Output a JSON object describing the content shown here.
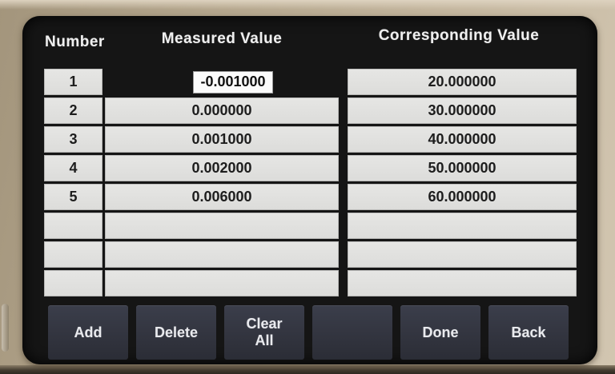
{
  "header": {
    "number": "Number",
    "measured": "Measured Value",
    "corresponding": "Corresponding Value"
  },
  "table": {
    "rows": [
      {
        "number": "1",
        "measured": "-0.001000",
        "corresponding": "20.000000",
        "selected": true
      },
      {
        "number": "2",
        "measured": "0.000000",
        "corresponding": "30.000000",
        "selected": false
      },
      {
        "number": "3",
        "measured": "0.001000",
        "corresponding": "40.000000",
        "selected": false
      },
      {
        "number": "4",
        "measured": "0.002000",
        "corresponding": "50.000000",
        "selected": false
      },
      {
        "number": "5",
        "measured": "0.006000",
        "corresponding": "60.000000",
        "selected": false
      },
      {
        "number": "",
        "measured": "",
        "corresponding": "",
        "selected": false
      },
      {
        "number": "",
        "measured": "",
        "corresponding": "",
        "selected": false
      },
      {
        "number": "",
        "measured": "",
        "corresponding": "",
        "selected": false
      }
    ]
  },
  "softkeys": [
    {
      "id": "add",
      "label": "Add"
    },
    {
      "id": "delete",
      "label": "Delete"
    },
    {
      "id": "clear-all",
      "label": "Clear\nAll"
    },
    {
      "id": "blank",
      "label": ""
    },
    {
      "id": "done",
      "label": "Done"
    },
    {
      "id": "back",
      "label": "Back"
    }
  ],
  "colors": {
    "casing": "#bdae95",
    "screen_background": "#151515",
    "cell_background": "#e2e2e0",
    "softkey_background": "#363947",
    "selected_cell_background": "#fbfbfb",
    "header_text": "#efefef",
    "cell_text": "#1d1d1d"
  }
}
